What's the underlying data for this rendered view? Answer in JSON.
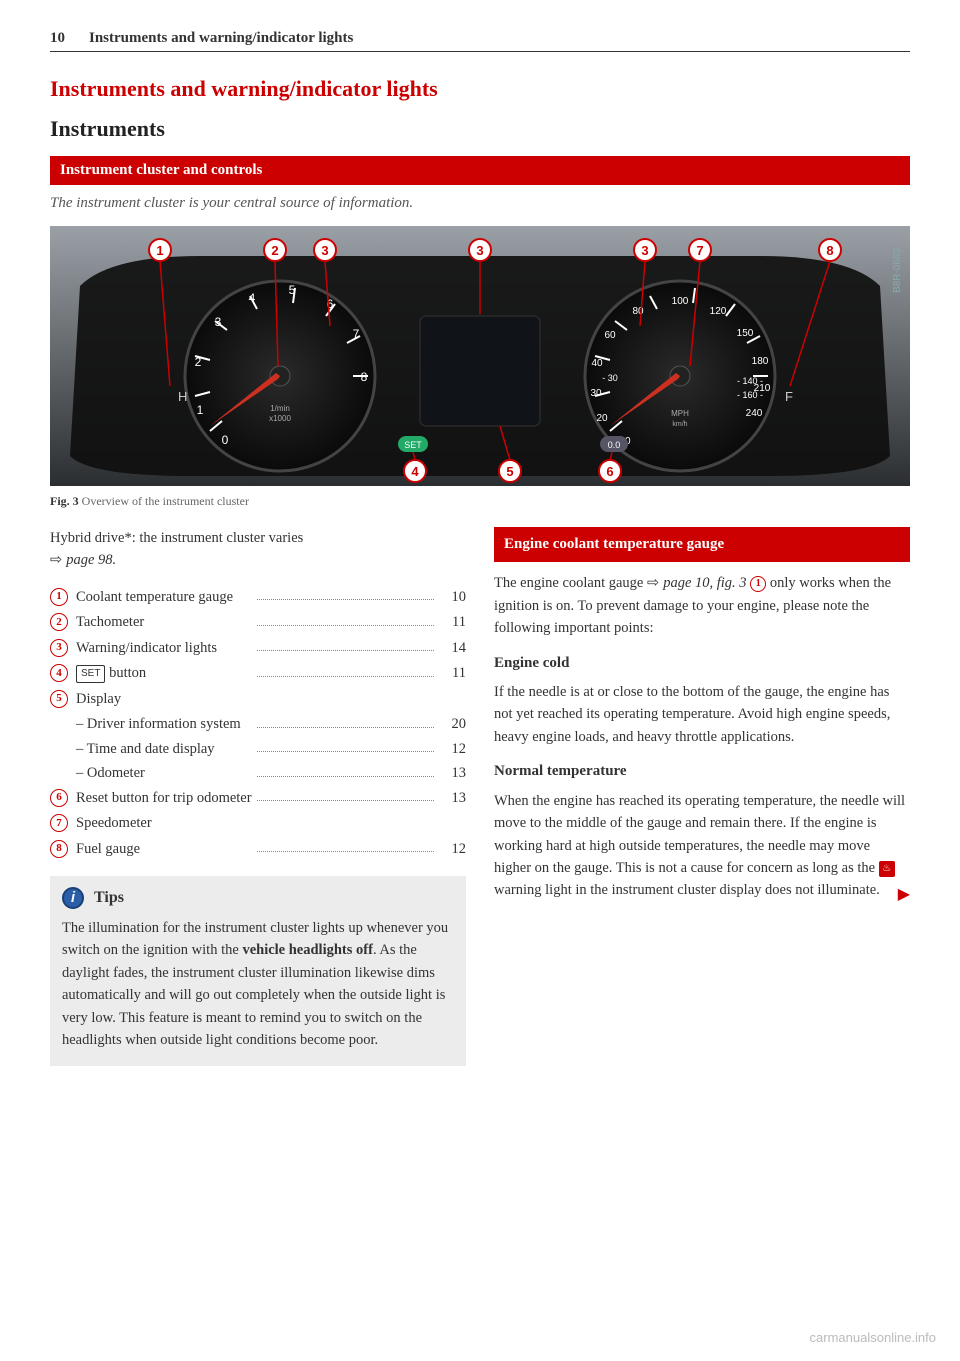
{
  "header": {
    "page_number": "10",
    "running_title": "Instruments and warning/indicator lights"
  },
  "chapter_title": "Instruments and warning/indicator lights",
  "section_title": "Instruments",
  "subsection_bar": "Instrument cluster and controls",
  "intro_italic": "The instrument cluster is your central source of information.",
  "figure": {
    "caption_label": "Fig. 3",
    "caption_text": "Overview of the instrument cluster",
    "image_code": "B8R-0683",
    "callouts_top": [
      "1",
      "2",
      "3",
      "3",
      "3",
      "7",
      "8"
    ],
    "callouts_bottom": [
      "4",
      "5",
      "6"
    ],
    "callout_color": "#c00",
    "bg_gradient_top": "#9aa0a6",
    "bg_gradient_bottom": "#2b2e31",
    "dial_bg": "#1a1a1a",
    "tick_color": "#ffffff",
    "tacho": {
      "ticks": [
        "0",
        "1",
        "2",
        "3",
        "4",
        "5",
        "6",
        "7",
        "8"
      ],
      "unit": "1/min x1000",
      "left_initial": "H"
    },
    "speedo": {
      "inner": [
        "10",
        "20",
        "30",
        "40",
        "60",
        "80"
      ],
      "outer": [
        "100",
        "120",
        "150",
        "180",
        "210",
        "240"
      ],
      "inner_neg": [
        "-30",
        "-140",
        "-160"
      ],
      "unit": "MPH km/h",
      "right_initial": "F"
    },
    "set_label": "SET",
    "zero_label": "0.0"
  },
  "left_col": {
    "hybrid_note_a": "Hybrid drive*: the instrument cluster varies",
    "hybrid_note_b": "page 98.",
    "items": [
      {
        "n": "1",
        "label": "Coolant temperature gauge",
        "page": "10"
      },
      {
        "n": "2",
        "label": "Tachometer",
        "page": "11"
      },
      {
        "n": "3",
        "label": "Warning/indicator lights",
        "page": "14"
      },
      {
        "n": "4",
        "label_prefix": "",
        "set": true,
        "label_suffix": " button",
        "page": "11"
      },
      {
        "n": "5",
        "label": "Display",
        "page": "",
        "subs": [
          {
            "label": "– Driver information system",
            "page": "20"
          },
          {
            "label": "– Time and date display",
            "page": "12"
          },
          {
            "label": "– Odometer",
            "page": "13"
          }
        ]
      },
      {
        "n": "6",
        "label": "Reset button for trip odometer",
        "page": "13"
      },
      {
        "n": "7",
        "label": "Speedometer",
        "page": ""
      },
      {
        "n": "8",
        "label": "Fuel gauge",
        "page": "12"
      }
    ],
    "tips": {
      "title": "Tips",
      "body": "The illumination for the instrument cluster lights up whenever you switch on the ignition with the vehicle headlights off. As the daylight fades, the instrument cluster illumination likewise dims automatically and will go out completely when the outside light is very low. This feature is meant to remind you to switch on the headlights when outside light conditions become poor.",
      "bold_phrase": "vehicle headlights off"
    }
  },
  "right_col": {
    "bar": "Engine coolant temperature gauge",
    "intro_a": "The engine coolant gauge ",
    "intro_ref": "page 10, fig. 3",
    "intro_circ": "1",
    "intro_b": " only works when the ignition is on. To prevent damage to your engine, please note the following important points:",
    "h_cold": "Engine cold",
    "p_cold": "If the needle is at or close to the bottom of the gauge, the engine has not yet reached its operating temperature. Avoid high engine speeds, heavy engine loads, and heavy throttle applications.",
    "h_norm": "Normal temperature",
    "p_norm_a": "When the engine has reached its operating temperature, the needle will move to the middle of the gauge and remain there. If the engine is working hard at high outside temperatures, the needle may move higher on the gauge. This is not a cause for concern as long as the ",
    "p_norm_b": " warning light in the instrument cluster display does not illuminate."
  },
  "watermark": "carmanualsonline.info"
}
